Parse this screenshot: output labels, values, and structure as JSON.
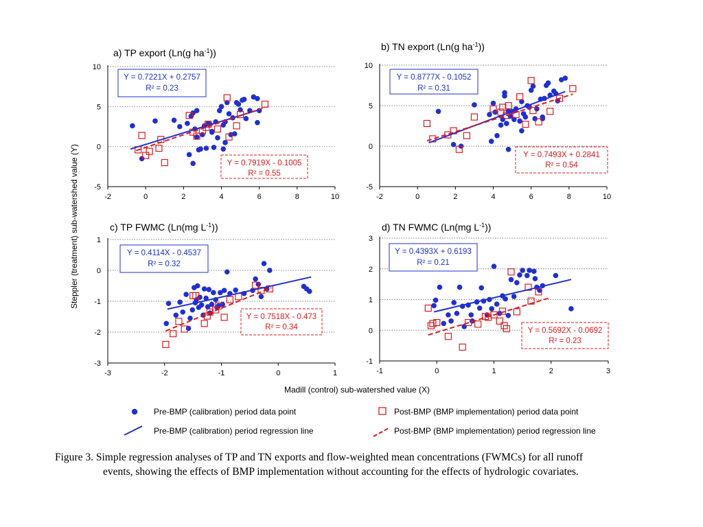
{
  "figure": {
    "y_axis_label": "Steppler (treatment) sub-watershed value (Y)",
    "x_axis_label": "Madill (control) sub-watershed value (X)",
    "legend": {
      "pre_points": "Pre-BMP (calibration) period data point",
      "post_points": "Post-BMP (BMP implementation) period data point",
      "pre_line": "Pre-BMP (calibration) period regression line",
      "post_line": "Post-BMP (BMP implementation) period regression line"
    },
    "colors": {
      "pre": "#1f2fd6",
      "post": "#e0191c",
      "grid": "#808080"
    }
  },
  "caption": {
    "line1": "Figure 3. Simple regression analyses of TP and TN exports and flow-weighted mean concentrations (FWMCs) for all runoff",
    "line2": "events, showing the effects of BMP implementation without accounting for the effects of hydrologic covariates."
  },
  "chart_data": [
    {
      "type": "scatter",
      "title": "a) TP export (Ln(g ha",
      "title_sup": "-1",
      "title_end": "))",
      "xlim": [
        -2,
        10
      ],
      "ylim": [
        -5,
        10
      ],
      "xticks": [
        "-2",
        "0",
        "2",
        "4",
        "6",
        "8",
        "10"
      ],
      "yticks": [
        "-5",
        "0",
        "5",
        "10"
      ],
      "grid": "horizontal dotted",
      "pre_eq": "Y = 0.7221X + 0.2757",
      "pre_r2": "R² = 0.23",
      "post_eq": "Y = 0.7919X - 0.1005",
      "post_r2": "R² = 0.55",
      "pre_fit": {
        "slope": 0.7221,
        "intercept": 0.2757,
        "xrange": [
          -0.8,
          6.0
        ]
      },
      "post_fit": {
        "slope": 0.7919,
        "intercept": -0.1005,
        "xrange": [
          -0.5,
          6.2
        ]
      },
      "pre": [
        [
          -0.7,
          2.6
        ],
        [
          -0.2,
          -1.5
        ],
        [
          0.5,
          3.2
        ],
        [
          1.5,
          3.3
        ],
        [
          1.8,
          2.5
        ],
        [
          2.2,
          2.9
        ],
        [
          2.4,
          3.8
        ],
        [
          2.5,
          4.2
        ],
        [
          2.7,
          4.5
        ],
        [
          2.3,
          -1.0
        ],
        [
          2.5,
          -2.1
        ],
        [
          2.7,
          1.2
        ],
        [
          2.8,
          -0.4
        ],
        [
          2.9,
          -0.3
        ],
        [
          3.0,
          1.5
        ],
        [
          3.1,
          2.6
        ],
        [
          3.2,
          -0.2
        ],
        [
          3.3,
          2.9
        ],
        [
          3.4,
          2.8
        ],
        [
          3.5,
          1.9
        ],
        [
          3.6,
          -0.1
        ],
        [
          3.7,
          3.1
        ],
        [
          3.8,
          1.1
        ],
        [
          3.9,
          4.5
        ],
        [
          4.0,
          5.0
        ],
        [
          4.1,
          -0.3
        ],
        [
          4.1,
          2.7
        ],
        [
          4.2,
          3.1
        ],
        [
          4.3,
          5.5
        ],
        [
          4.4,
          4.1
        ],
        [
          4.6,
          3.6
        ],
        [
          4.7,
          1.6
        ],
        [
          4.8,
          5.5
        ],
        [
          4.9,
          5.3
        ],
        [
          5.0,
          4.6
        ],
        [
          5.1,
          5.8
        ],
        [
          5.2,
          5.9
        ],
        [
          5.3,
          3.5
        ],
        [
          5.5,
          4.5
        ],
        [
          5.7,
          6.2
        ],
        [
          5.9,
          6.0
        ],
        [
          6.0,
          4.5
        ],
        [
          5.9,
          3.0
        ],
        [
          4.5,
          1.5
        ],
        [
          3.5,
          1.8
        ],
        [
          2.6,
          2.2
        ],
        [
          4.2,
          0.5
        ]
      ],
      "post": [
        [
          -0.4,
          -0.4
        ],
        [
          -0.2,
          1.4
        ],
        [
          0.0,
          -1.1
        ],
        [
          0.2,
          -0.6
        ],
        [
          0.7,
          -0.2
        ],
        [
          0.8,
          0.9
        ],
        [
          1.0,
          -2.0
        ],
        [
          2.3,
          3.9
        ],
        [
          2.5,
          1.8
        ],
        [
          2.7,
          1.3
        ],
        [
          3.0,
          2.0
        ],
        [
          3.2,
          2.4
        ],
        [
          3.3,
          2.8
        ],
        [
          4.3,
          6.1
        ],
        [
          4.8,
          2.6
        ],
        [
          4.4,
          1.2
        ],
        [
          6.3,
          5.3
        ],
        [
          3.8,
          2.2
        ],
        [
          5.0,
          4.0
        ]
      ]
    },
    {
      "type": "scatter",
      "title": "b) TN export (Ln(g ha",
      "title_sup": "-1",
      "title_end": "))",
      "xlim": [
        -2,
        10
      ],
      "ylim": [
        -5,
        10
      ],
      "xticks": [
        "-2",
        "0",
        "2",
        "4",
        "6",
        "8",
        "10"
      ],
      "yticks": [
        "-5",
        "0",
        "5",
        "10"
      ],
      "grid": "horizontal dotted",
      "pre_eq": "Y = 0.8777X - 0.1052",
      "pre_r2": "R² = 0.31",
      "post_eq": "Y = 0.7493X + 0.2841",
      "post_r2": "R² = 0.54",
      "pre_fit": {
        "slope": 0.8777,
        "intercept": -0.1052,
        "xrange": [
          0.6,
          7.8
        ]
      },
      "post_fit": {
        "slope": 0.7493,
        "intercept": 0.2841,
        "xrange": [
          0.5,
          8.2
        ]
      },
      "pre": [
        [
          1.1,
          4.3
        ],
        [
          1.9,
          0.2
        ],
        [
          2.3,
          0.0
        ],
        [
          3.0,
          5.1
        ],
        [
          3.8,
          3.9
        ],
        [
          4.0,
          5.3
        ],
        [
          4.1,
          4.2
        ],
        [
          4.2,
          1.3
        ],
        [
          4.4,
          2.6
        ],
        [
          4.5,
          3.3
        ],
        [
          4.6,
          6.2
        ],
        [
          4.7,
          2.8
        ],
        [
          4.8,
          4.3
        ],
        [
          4.9,
          3.7
        ],
        [
          5.0,
          4.3
        ],
        [
          5.1,
          3.3
        ],
        [
          5.2,
          4.6
        ],
        [
          5.4,
          3.1
        ],
        [
          5.5,
          1.9
        ],
        [
          5.6,
          4.0
        ],
        [
          5.7,
          3.6
        ],
        [
          5.8,
          5.0
        ],
        [
          5.9,
          4.8
        ],
        [
          6.0,
          6.9
        ],
        [
          6.1,
          7.4
        ],
        [
          6.2,
          3.4
        ],
        [
          6.3,
          4.6
        ],
        [
          6.5,
          5.8
        ],
        [
          6.6,
          3.6
        ],
        [
          6.7,
          5.9
        ],
        [
          6.8,
          7.5
        ],
        [
          6.9,
          7.8
        ],
        [
          7.0,
          6.3
        ],
        [
          7.2,
          6.8
        ],
        [
          7.3,
          6.5
        ],
        [
          7.4,
          5.6
        ],
        [
          7.6,
          8.2
        ],
        [
          7.8,
          8.4
        ],
        [
          4.6,
          6.6
        ],
        [
          5.5,
          5.5
        ],
        [
          4.8,
          -0.4
        ],
        [
          3.9,
          0.6
        ],
        [
          6.6,
          3.4
        ]
      ],
      "post": [
        [
          0.5,
          2.8
        ],
        [
          0.8,
          0.9
        ],
        [
          1.6,
          1.4
        ],
        [
          1.9,
          1.9
        ],
        [
          2.2,
          -0.4
        ],
        [
          2.6,
          1.3
        ],
        [
          3.0,
          3.6
        ],
        [
          4.0,
          4.6
        ],
        [
          4.4,
          4.2
        ],
        [
          4.5,
          4.8
        ],
        [
          4.7,
          3.8
        ],
        [
          4.8,
          5.0
        ],
        [
          5.2,
          3.9
        ],
        [
          5.4,
          6.1
        ],
        [
          5.7,
          2.7
        ],
        [
          6.0,
          8.1
        ],
        [
          6.1,
          4.4
        ],
        [
          6.4,
          3.0
        ],
        [
          7.0,
          4.3
        ],
        [
          7.5,
          5.9
        ],
        [
          8.2,
          7.1
        ]
      ]
    },
    {
      "type": "scatter",
      "title": "c) TP FWMC (Ln(mg L",
      "title_sup": "-1",
      "title_end": "))",
      "xlim": [
        -3,
        1
      ],
      "ylim": [
        -3,
        1
      ],
      "xticks": [
        "-3",
        "-2",
        "-1",
        "0",
        "1"
      ],
      "yticks": [
        "-3",
        "-2",
        "-1",
        "0",
        "1"
      ],
      "grid": "horizontal dotted",
      "pre_eq": "Y = 0.4114X - 0.4537",
      "pre_r2": "R² = 0.32",
      "post_eq": "Y = 0.7518X - 0.473",
      "post_r2": "R² = 0.34",
      "pre_fit": {
        "slope": 0.4114,
        "intercept": -0.4537,
        "xrange": [
          -1.95,
          0.58
        ]
      },
      "post_fit": {
        "slope": 0.7518,
        "intercept": -0.473,
        "xrange": [
          -1.98,
          -0.12
        ]
      },
      "pre": [
        [
          -1.97,
          -1.72
        ],
        [
          -1.93,
          -1.07
        ],
        [
          -1.8,
          -1.45
        ],
        [
          -1.73,
          -1.03
        ],
        [
          -1.68,
          -1.35
        ],
        [
          -1.62,
          -0.78
        ],
        [
          -1.58,
          -1.88
        ],
        [
          -1.55,
          -1.55
        ],
        [
          -1.51,
          -1.28
        ],
        [
          -1.48,
          -0.56
        ],
        [
          -1.46,
          -1.05
        ],
        [
          -1.44,
          -0.95
        ],
        [
          -1.42,
          -0.5
        ],
        [
          -1.4,
          -1.2
        ],
        [
          -1.38,
          -0.87
        ],
        [
          -1.35,
          -1.12
        ],
        [
          -1.32,
          -1.45
        ],
        [
          -1.3,
          -0.6
        ],
        [
          -1.27,
          -0.9
        ],
        [
          -1.24,
          -1.18
        ],
        [
          -1.22,
          -0.62
        ],
        [
          -1.2,
          -1.38
        ],
        [
          -1.17,
          -1.1
        ],
        [
          -1.14,
          -0.72
        ],
        [
          -1.1,
          -0.95
        ],
        [
          -1.08,
          -1.2
        ],
        [
          -1.05,
          -1.15
        ],
        [
          -1.02,
          -0.72
        ],
        [
          -0.98,
          -1.1
        ],
        [
          -0.95,
          -0.65
        ],
        [
          -0.9,
          -0.05
        ],
        [
          -0.85,
          -0.75
        ],
        [
          -0.75,
          -0.64
        ],
        [
          -0.6,
          -0.75
        ],
        [
          -0.45,
          -0.65
        ],
        [
          -0.4,
          -0.28
        ],
        [
          -0.35,
          -0.45
        ],
        [
          -0.3,
          -0.85
        ],
        [
          -0.25,
          0.22
        ],
        [
          -0.2,
          -0.6
        ],
        [
          -0.15,
          0.0
        ],
        [
          0.45,
          -0.52
        ],
        [
          0.5,
          -0.6
        ],
        [
          0.55,
          -0.68
        ]
      ],
      "post": [
        [
          -1.98,
          -2.4
        ],
        [
          -1.85,
          -2.05
        ],
        [
          -1.75,
          -1.65
        ],
        [
          -1.65,
          -1.9
        ],
        [
          -1.5,
          -0.82
        ],
        [
          -1.45,
          -0.82
        ],
        [
          -1.3,
          -1.72
        ],
        [
          -1.25,
          -1.48
        ],
        [
          -1.2,
          -1.35
        ],
        [
          -1.1,
          -1.28
        ],
        [
          -1.05,
          -1.15
        ],
        [
          -0.95,
          -1.52
        ],
        [
          -0.85,
          -0.95
        ],
        [
          -0.7,
          -0.85
        ],
        [
          -0.4,
          -0.48
        ],
        [
          -0.3,
          -0.65
        ],
        [
          -0.15,
          -0.6
        ]
      ]
    },
    {
      "type": "scatter",
      "title": "d) TN FWMC (Ln(mg L",
      "title_sup": "-1",
      "title_end": "))",
      "xlim": [
        -1,
        3
      ],
      "ylim": [
        -1,
        3
      ],
      "xticks": [
        "-1",
        "0",
        "1",
        "2",
        "3"
      ],
      "yticks": [
        "-1",
        "0",
        "1",
        "2",
        "3"
      ],
      "grid": "horizontal dotted",
      "pre_eq": "Y = 0.4393X + 0.6193",
      "pre_r2": "R² = 0.21",
      "post_eq": "Y = 0.5692X - 0.0692",
      "post_r2": "R² = 0.23",
      "pre_fit": {
        "slope": 0.4393,
        "intercept": 0.6193,
        "xrange": [
          -0.05,
          2.35
        ]
      },
      "post_fit": {
        "slope": 0.5692,
        "intercept": -0.0692,
        "xrange": [
          -0.15,
          1.95
        ]
      },
      "pre": [
        [
          -0.05,
          0.8
        ],
        [
          -0.02,
          0.98
        ],
        [
          0.05,
          1.4
        ],
        [
          0.12,
          0.22
        ],
        [
          0.2,
          0.5
        ],
        [
          0.25,
          0.3
        ],
        [
          0.3,
          0.9
        ],
        [
          0.35,
          0.55
        ],
        [
          0.4,
          1.4
        ],
        [
          0.45,
          0.78
        ],
        [
          0.48,
          0.12
        ],
        [
          0.55,
          0.82
        ],
        [
          0.6,
          0.5
        ],
        [
          0.62,
          0.3
        ],
        [
          0.65,
          2.28
        ],
        [
          0.7,
          0.92
        ],
        [
          0.75,
          0.72
        ],
        [
          0.78,
          1.38
        ],
        [
          0.82,
          0.95
        ],
        [
          0.88,
          0.5
        ],
        [
          0.92,
          1.0
        ],
        [
          0.96,
          0.7
        ],
        [
          1.0,
          2.08
        ],
        [
          1.05,
          0.85
        ],
        [
          1.1,
          0.55
        ],
        [
          1.15,
          1.12
        ],
        [
          1.2,
          1.02
        ],
        [
          1.25,
          0.48
        ],
        [
          1.3,
          1.65
        ],
        [
          1.35,
          1.1
        ],
        [
          1.4,
          1.55
        ],
        [
          1.45,
          1.8
        ],
        [
          1.5,
          1.95
        ],
        [
          1.58,
          1.78
        ],
        [
          1.62,
          1.95
        ],
        [
          1.7,
          1.92
        ],
        [
          1.72,
          1.68
        ],
        [
          1.75,
          1.4
        ],
        [
          1.8,
          1.3
        ],
        [
          1.85,
          1.45
        ],
        [
          2.08,
          1.78
        ],
        [
          2.35,
          0.7
        ]
      ],
      "post": [
        [
          -0.15,
          0.72
        ],
        [
          -0.1,
          0.15
        ],
        [
          -0.07,
          0.22
        ],
        [
          0.0,
          0.25
        ],
        [
          0.2,
          -0.2
        ],
        [
          0.45,
          -0.55
        ],
        [
          0.55,
          0.25
        ],
        [
          0.72,
          0.2
        ],
        [
          0.85,
          0.45
        ],
        [
          0.9,
          0.42
        ],
        [
          1.0,
          0.5
        ],
        [
          1.1,
          0.3
        ],
        [
          1.15,
          0.62
        ],
        [
          1.18,
          0.15
        ],
        [
          1.22,
          0.05
        ],
        [
          1.3,
          1.9
        ],
        [
          1.6,
          1.4
        ],
        [
          1.78,
          1.25
        ],
        [
          1.65,
          0.95
        ],
        [
          1.4,
          0.6
        ]
      ]
    }
  ]
}
